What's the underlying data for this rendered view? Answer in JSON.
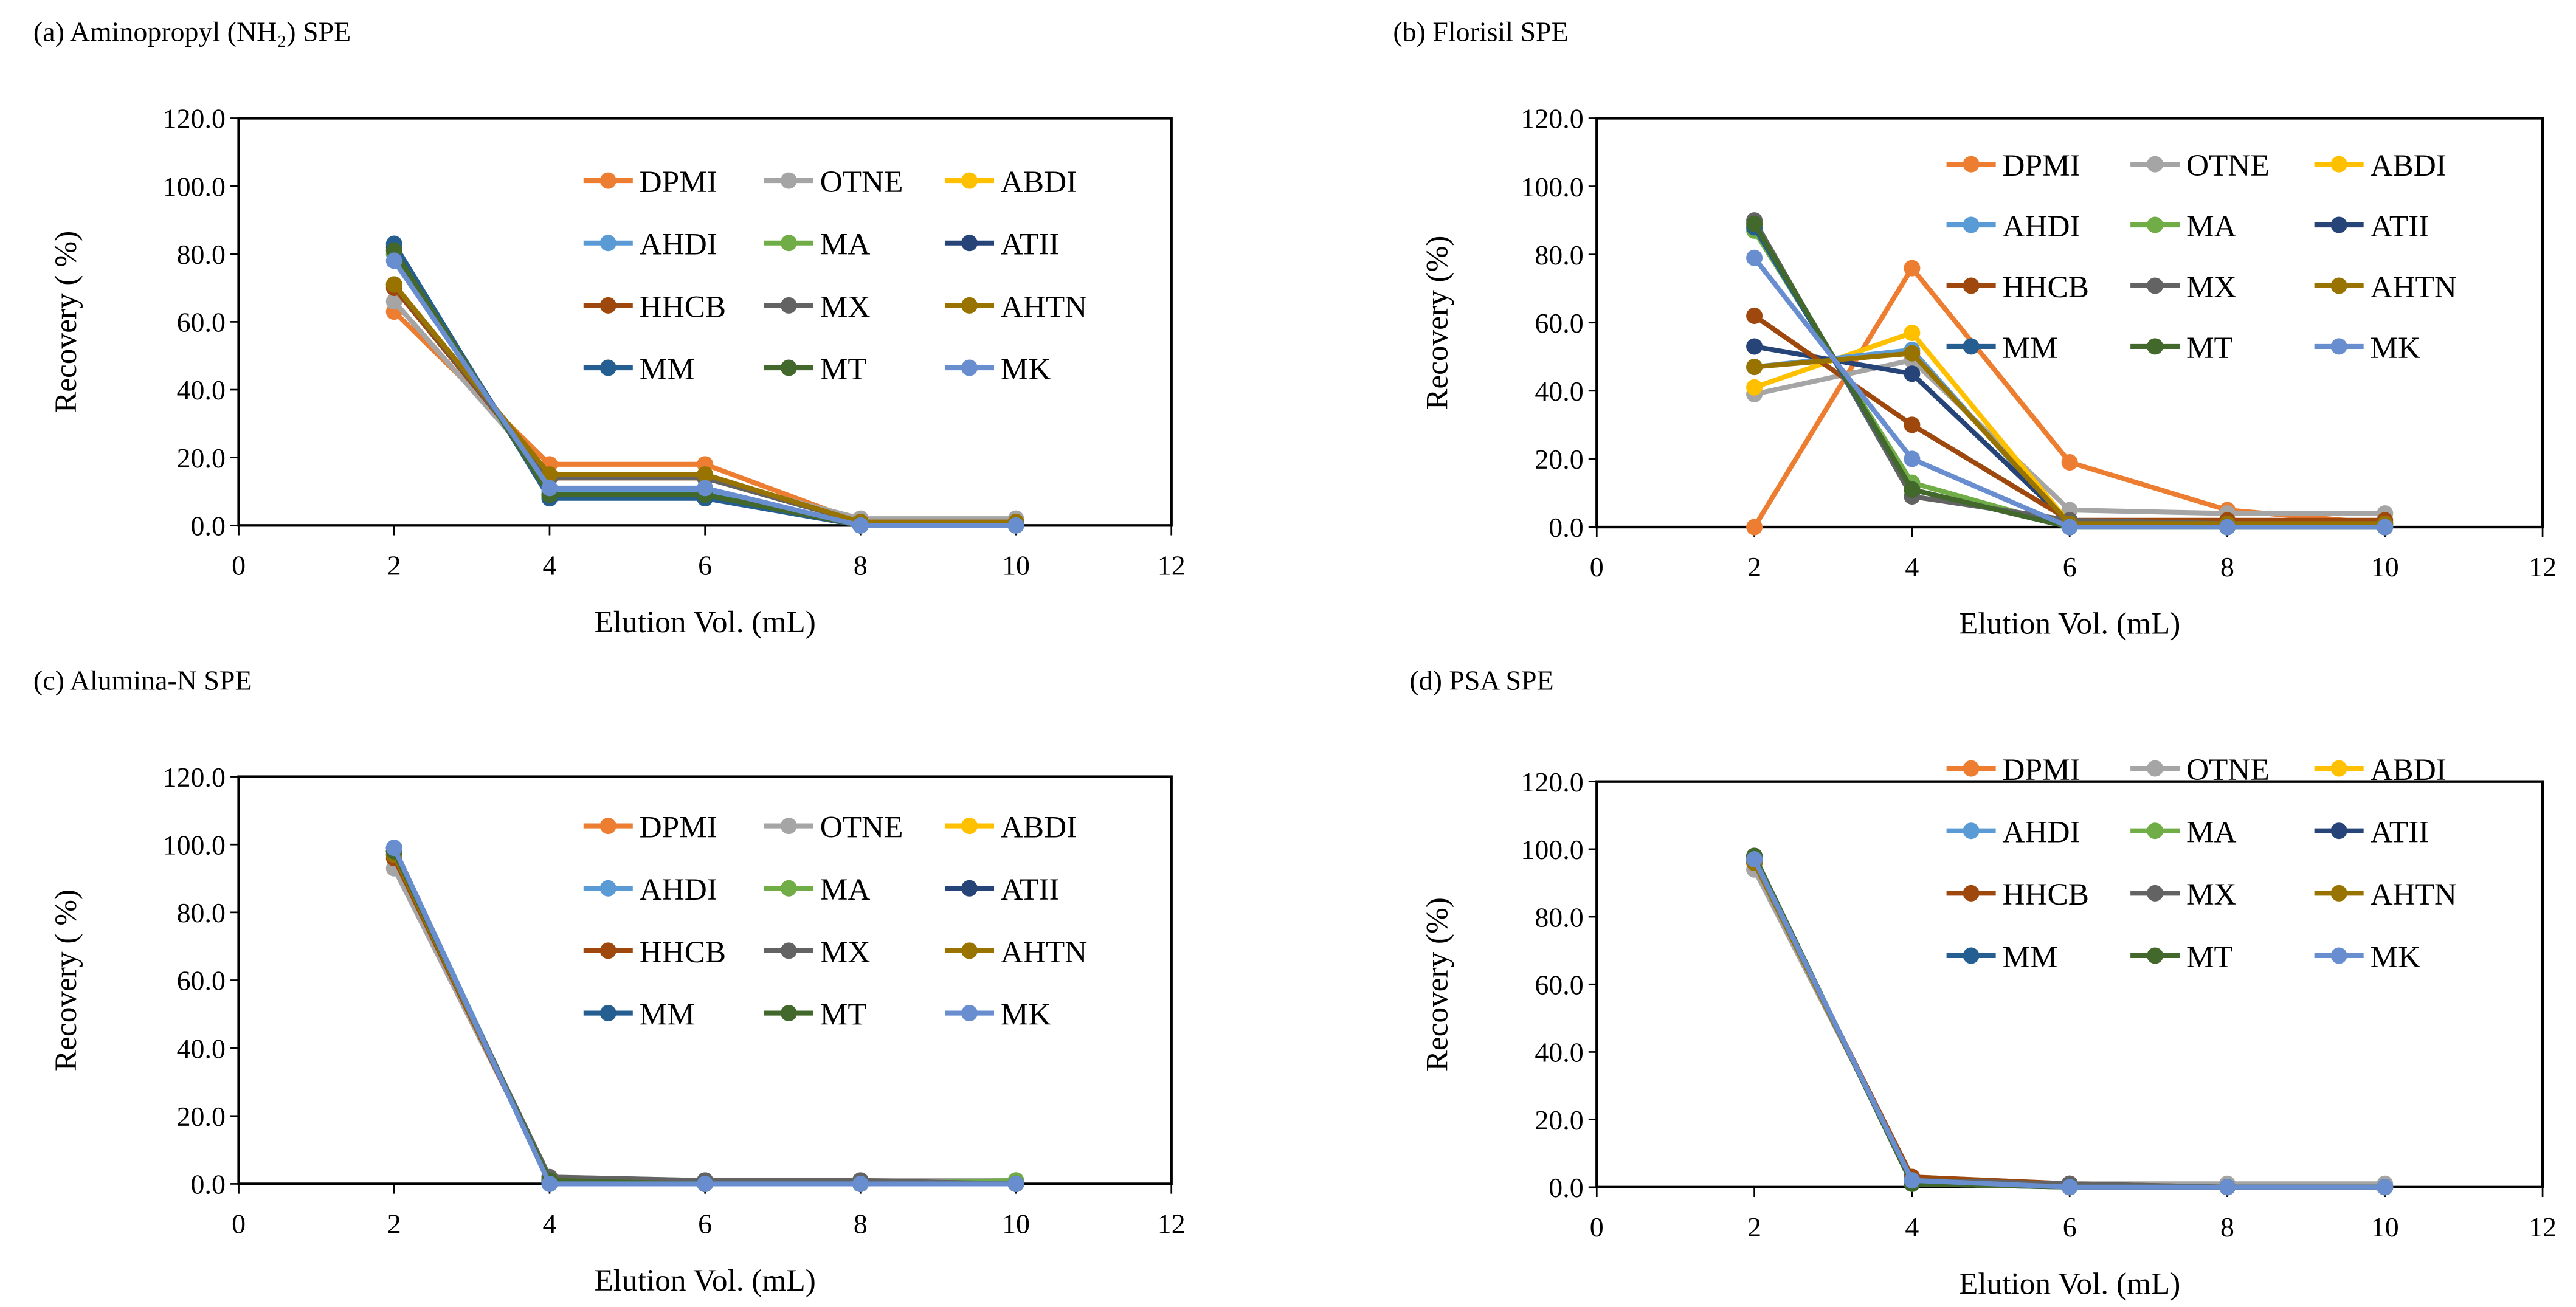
{
  "colors": {
    "DPMI": "#ED7D31",
    "OTNE": "#A5A5A5",
    "ABDI": "#FFC000",
    "AHDI": "#5B9BD5",
    "MA": "#70AD47",
    "ATII": "#264478",
    "HHCB": "#9E480E",
    "MX": "#636363",
    "AHTN": "#997300",
    "MM": "#255E91",
    "MT": "#43682B",
    "MK": "#698ED0"
  },
  "chart_data": [
    {
      "type": "line",
      "title": "(a) Aminopropyl (NH₂)  SPE",
      "xlabel": "Elution Vol. (mL)",
      "ylabel": "Recovery ( %)",
      "xlim": [
        0,
        12
      ],
      "ylim": [
        0,
        120
      ],
      "xticks": [
        "0",
        "2",
        "4",
        "6",
        "8",
        "10",
        "12"
      ],
      "yticks": [
        "0.0",
        "20.0",
        "40.0",
        "60.0",
        "80.0",
        "100.0",
        "120.0"
      ],
      "legend": "top-right",
      "grid": false,
      "x": [
        2,
        4,
        6,
        8,
        10
      ],
      "series": [
        {
          "name": "DPMI",
          "values": [
            63,
            18,
            18,
            1,
            1
          ]
        },
        {
          "name": "OTNE",
          "values": [
            66,
            14,
            14,
            2,
            2
          ]
        },
        {
          "name": "ABDI",
          "values": [
            71,
            14,
            14,
            1,
            1
          ]
        },
        {
          "name": "AHDI",
          "values": [
            80,
            10,
            10,
            0,
            0
          ]
        },
        {
          "name": "MA",
          "values": [
            80,
            9,
            9,
            0,
            0
          ]
        },
        {
          "name": "ATII",
          "values": [
            82,
            9,
            9,
            0,
            0
          ]
        },
        {
          "name": "HHCB",
          "values": [
            70,
            14,
            14,
            1,
            1
          ]
        },
        {
          "name": "MX",
          "values": [
            71,
            14,
            14,
            1,
            1
          ]
        },
        {
          "name": "AHTN",
          "values": [
            71,
            15,
            15,
            1,
            1
          ]
        },
        {
          "name": "MM",
          "values": [
            83,
            8,
            8,
            0,
            0
          ]
        },
        {
          "name": "MT",
          "values": [
            81,
            9,
            9,
            0,
            0
          ]
        },
        {
          "name": "MK",
          "values": [
            78,
            11,
            11,
            0,
            0
          ]
        }
      ]
    },
    {
      "type": "line",
      "title": "(b) Florisil SPE",
      "xlabel": "Elution Vol. (mL)",
      "ylabel": "Recovery (%)",
      "xlim": [
        0,
        12
      ],
      "ylim": [
        0,
        120
      ],
      "xticks": [
        "0",
        "2",
        "4",
        "6",
        "8",
        "10",
        "12"
      ],
      "yticks": [
        "0.0",
        "20.0",
        "40.0",
        "60.0",
        "80.0",
        "100.0",
        "120.0"
      ],
      "legend": "top-right",
      "grid": false,
      "x": [
        2,
        4,
        6,
        8,
        10
      ],
      "series": [
        {
          "name": "DPMI",
          "values": [
            0,
            76,
            19,
            5,
            1
          ]
        },
        {
          "name": "OTNE",
          "values": [
            39,
            49,
            5,
            4,
            4
          ]
        },
        {
          "name": "ABDI",
          "values": [
            41,
            57,
            1,
            1,
            1
          ]
        },
        {
          "name": "AHDI",
          "values": [
            47,
            52,
            0,
            0,
            0
          ]
        },
        {
          "name": "MA",
          "values": [
            87,
            13,
            0,
            0,
            0
          ]
        },
        {
          "name": "ATII",
          "values": [
            53,
            45,
            1,
            0,
            0
          ]
        },
        {
          "name": "HHCB",
          "values": [
            62,
            30,
            2,
            2,
            2
          ]
        },
        {
          "name": "MX",
          "values": [
            90,
            9,
            2,
            1,
            1
          ]
        },
        {
          "name": "AHTN",
          "values": [
            47,
            51,
            1,
            1,
            1
          ]
        },
        {
          "name": "MM",
          "values": [
            88,
            11,
            0,
            0,
            0
          ]
        },
        {
          "name": "MT",
          "values": [
            89,
            11,
            0,
            0,
            0
          ]
        },
        {
          "name": "MK",
          "values": [
            79,
            20,
            0,
            0,
            0
          ]
        }
      ]
    },
    {
      "type": "line",
      "title": "(c) Alumina-N SPE",
      "xlabel": "Elution Vol.  (mL)",
      "ylabel": "Recovery ( %)",
      "xlim": [
        0,
        12
      ],
      "ylim": [
        0,
        120
      ],
      "xticks": [
        "0",
        "2",
        "4",
        "6",
        "8",
        "10",
        "12"
      ],
      "yticks": [
        "0.0",
        "20.0",
        "40.0",
        "60.0",
        "80.0",
        "100.0",
        "120.0"
      ],
      "legend": "top-right",
      "grid": false,
      "x": [
        2,
        4,
        6,
        8,
        10
      ],
      "series": [
        {
          "name": "DPMI",
          "values": [
            99,
            1,
            1,
            1,
            1
          ]
        },
        {
          "name": "OTNE",
          "values": [
            93,
            2,
            1,
            1,
            1
          ]
        },
        {
          "name": "ABDI",
          "values": [
            98,
            1,
            0,
            0,
            0
          ]
        },
        {
          "name": "AHDI",
          "values": [
            99,
            1,
            0,
            0,
            0
          ]
        },
        {
          "name": "MA",
          "values": [
            98,
            1,
            0,
            0,
            1
          ]
        },
        {
          "name": "ATII",
          "values": [
            98,
            1,
            0,
            0,
            0
          ]
        },
        {
          "name": "HHCB",
          "values": [
            96,
            1,
            0,
            0,
            0
          ]
        },
        {
          "name": "MX",
          "values": [
            97,
            2,
            1,
            1,
            0
          ]
        },
        {
          "name": "AHTN",
          "values": [
            97,
            1,
            0,
            0,
            0
          ]
        },
        {
          "name": "MM",
          "values": [
            99,
            0,
            0,
            0,
            0
          ]
        },
        {
          "name": "MT",
          "values": [
            98,
            1,
            0,
            0,
            0
          ]
        },
        {
          "name": "MK",
          "values": [
            99,
            0,
            0,
            0,
            0
          ]
        }
      ]
    },
    {
      "type": "line",
      "title": "(d) PSA SPE",
      "xlabel": "Elution Vol. (mL)",
      "ylabel": "Recovery (%)",
      "xlim": [
        0,
        12
      ],
      "ylim": [
        0,
        120
      ],
      "xticks": [
        "0",
        "2",
        "4",
        "6",
        "8",
        "10",
        "12"
      ],
      "yticks": [
        "0.0",
        "20.0",
        "40.0",
        "60.0",
        "80.0",
        "100.0",
        "120.0"
      ],
      "legend": "top-right",
      "grid": false,
      "x": [
        2,
        4,
        6,
        8,
        10
      ],
      "series": [
        {
          "name": "DPMI",
          "values": [
            96,
            2,
            1,
            0,
            0
          ]
        },
        {
          "name": "OTNE",
          "values": [
            94,
            3,
            1,
            1,
            1
          ]
        },
        {
          "name": "ABDI",
          "values": [
            97,
            2,
            0,
            0,
            0
          ]
        },
        {
          "name": "AHDI",
          "values": [
            97,
            2,
            0,
            0,
            0
          ]
        },
        {
          "name": "MA",
          "values": [
            98,
            1,
            0,
            0,
            0
          ]
        },
        {
          "name": "ATII",
          "values": [
            97,
            2,
            0,
            0,
            0
          ]
        },
        {
          "name": "HHCB",
          "values": [
            96,
            3,
            1,
            0,
            0
          ]
        },
        {
          "name": "MX",
          "values": [
            96,
            2,
            1,
            0,
            0
          ]
        },
        {
          "name": "AHTN",
          "values": [
            96,
            2,
            0,
            0,
            0
          ]
        },
        {
          "name": "MM",
          "values": [
            98,
            1,
            0,
            0,
            0
          ]
        },
        {
          "name": "MT",
          "values": [
            98,
            1,
            0,
            0,
            0
          ]
        },
        {
          "name": "MK",
          "values": [
            97,
            2,
            0,
            0,
            0
          ]
        }
      ]
    }
  ]
}
